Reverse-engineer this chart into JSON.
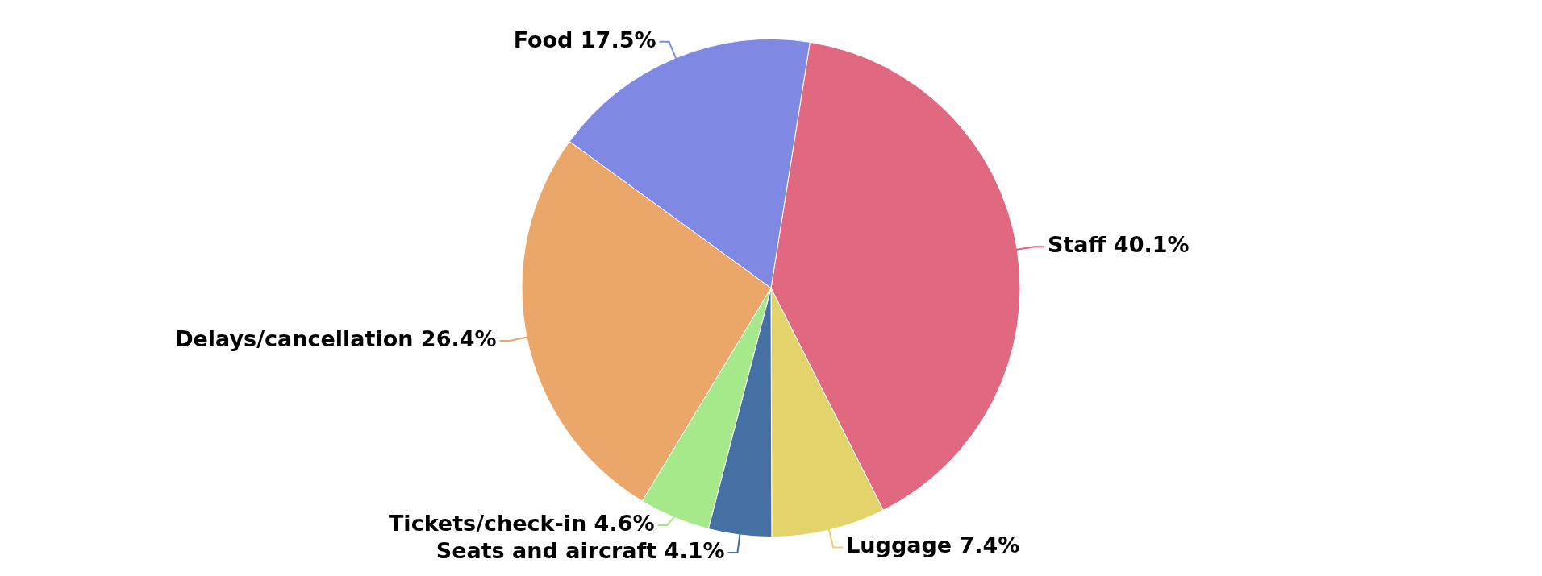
{
  "chart_data": {
    "type": "pie",
    "categories": [
      "Staff",
      "Luggage",
      "Seats and aircraft",
      "Tickets/check-in",
      "Delays/cancellation",
      "Food"
    ],
    "values": [
      40.1,
      7.4,
      4.1,
      4.6,
      26.4,
      17.5
    ],
    "colors": [
      "#e06880",
      "#e2d36b",
      "#4670a3",
      "#a6e98a",
      "#eba66a",
      "#7f89e3"
    ],
    "value_labels": [
      "40.1%",
      "7.4%",
      "4.1%",
      "4.6%",
      "26.4%",
      "17.5%"
    ],
    "legend": false
  }
}
